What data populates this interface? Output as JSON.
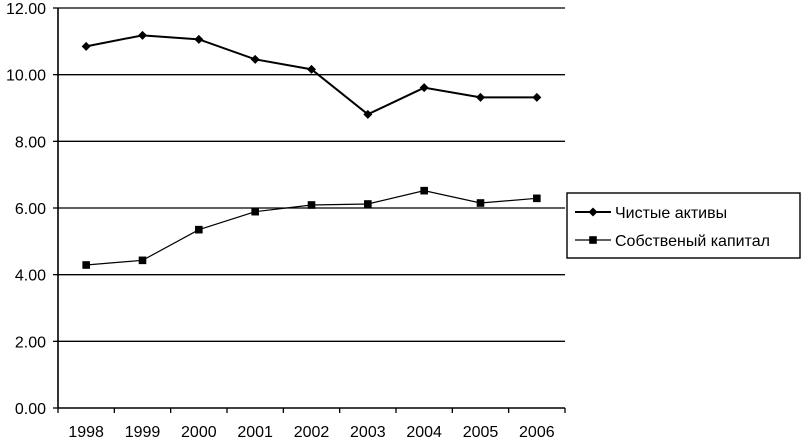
{
  "chart_data": {
    "type": "line",
    "title": "",
    "xlabel": "",
    "ylabel": "",
    "categories": [
      "1998",
      "1999",
      "2000",
      "2001",
      "2002",
      "2003",
      "2004",
      "2005",
      "2006"
    ],
    "ylim": [
      0,
      12
    ],
    "y_ticks": [
      "0.00",
      "2.00",
      "4.00",
      "6.00",
      "8.00",
      "10.00",
      "12.00"
    ],
    "grid": true,
    "legend_position": "right",
    "series": [
      {
        "name": "Чистые активы",
        "marker": "diamond",
        "color": "#000000",
        "values": [
          10.85,
          11.18,
          11.06,
          10.46,
          10.16,
          8.81,
          9.61,
          9.32,
          9.32
        ]
      },
      {
        "name": "Собственый капитал",
        "marker": "square",
        "color": "#000000",
        "values": [
          4.29,
          4.43,
          5.35,
          5.89,
          6.09,
          6.12,
          6.52,
          6.15,
          6.29
        ]
      }
    ]
  }
}
